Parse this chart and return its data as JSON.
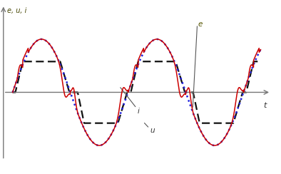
{
  "title_label": "e, u, i",
  "xlabel": "t",
  "background_color": "#ffffff",
  "e_color": "#2222dd",
  "u_color": "#cc0000",
  "i_color": "#111111",
  "e_label": "e",
  "u_label": "u",
  "i_label": "i",
  "period": 6.28318,
  "x_end": 13.5,
  "xlim": [
    -0.5,
    14.5
  ],
  "ylim": [
    -1.5,
    1.7
  ]
}
